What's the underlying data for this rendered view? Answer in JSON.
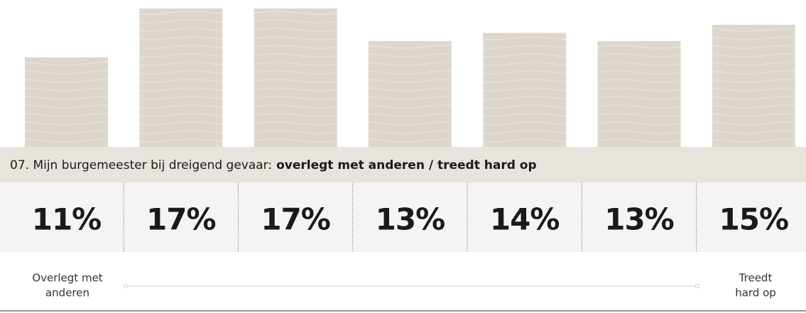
{
  "chart_data": {
    "type": "bar",
    "title": "07. Mijn burgemeester bij dreigend gevaar:",
    "title_emphasis": "overlegt met anderen / treedt hard op",
    "categories": [
      null,
      null,
      null,
      null,
      null,
      null,
      null
    ],
    "values": [
      11,
      17,
      17,
      13,
      14,
      13,
      15
    ],
    "value_labels": [
      "11%",
      "17%",
      "17%",
      "13%",
      "14%",
      "13%",
      "15%"
    ],
    "color": "#ddd6cb",
    "ylim": [
      0,
      17
    ],
    "scale_left": [
      "Overlegt met",
      "anderen"
    ],
    "scale_right": [
      "Treedt",
      "hard op"
    ]
  }
}
